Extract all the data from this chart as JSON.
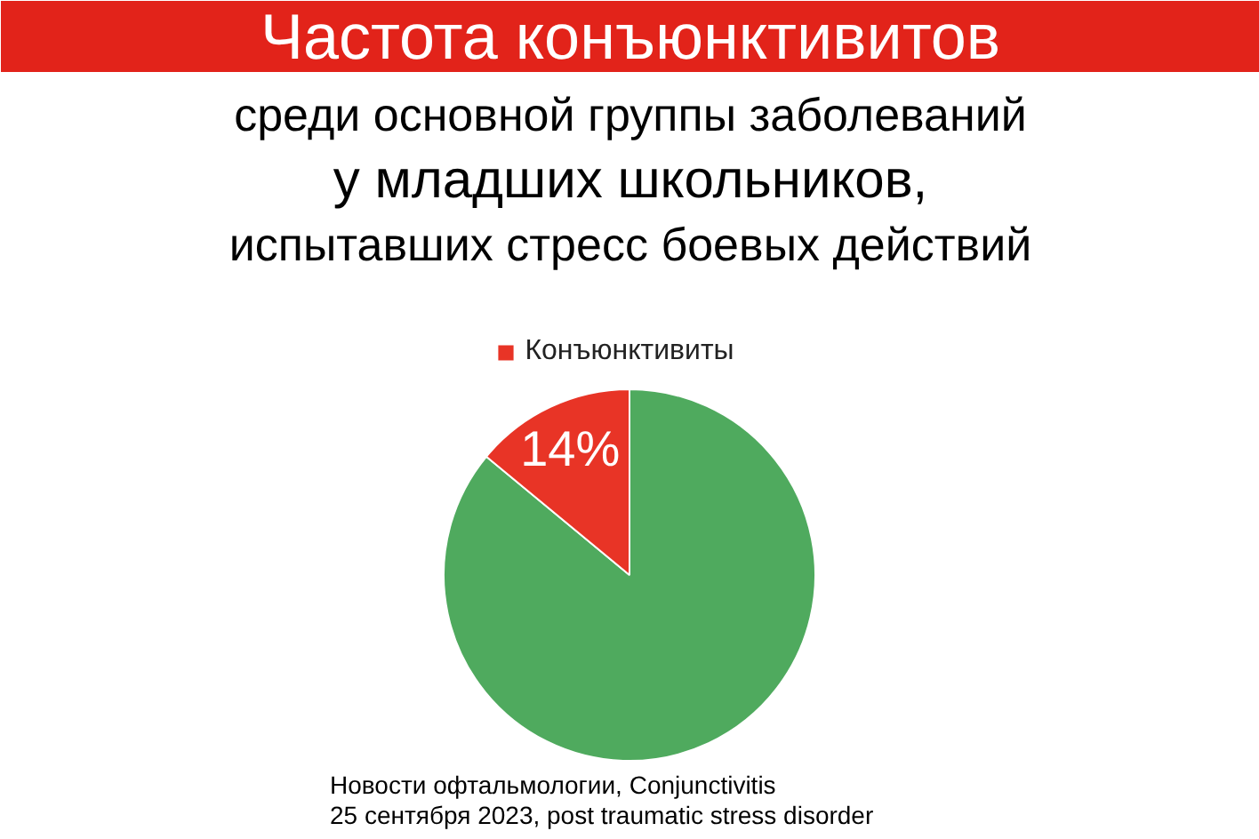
{
  "chart_data": {
    "type": "pie",
    "title": "Частота конъюнктивитов",
    "subtitle": "среди основной группы заболеваний\nу младших школьников,\nиспытавших стресс боевых действий",
    "categories": [
      null,
      "Конъюнктивиты"
    ],
    "values": [
      86,
      14
    ],
    "colors": [
      "#4faa5e",
      "#e83426"
    ],
    "value_labels": [
      null,
      "14%"
    ],
    "legend": "top",
    "annotations": [
      "Новости офтальмологии, Conjunctivitis",
      "25 сентября 2023, post traumatic stress disorder"
    ]
  }
}
